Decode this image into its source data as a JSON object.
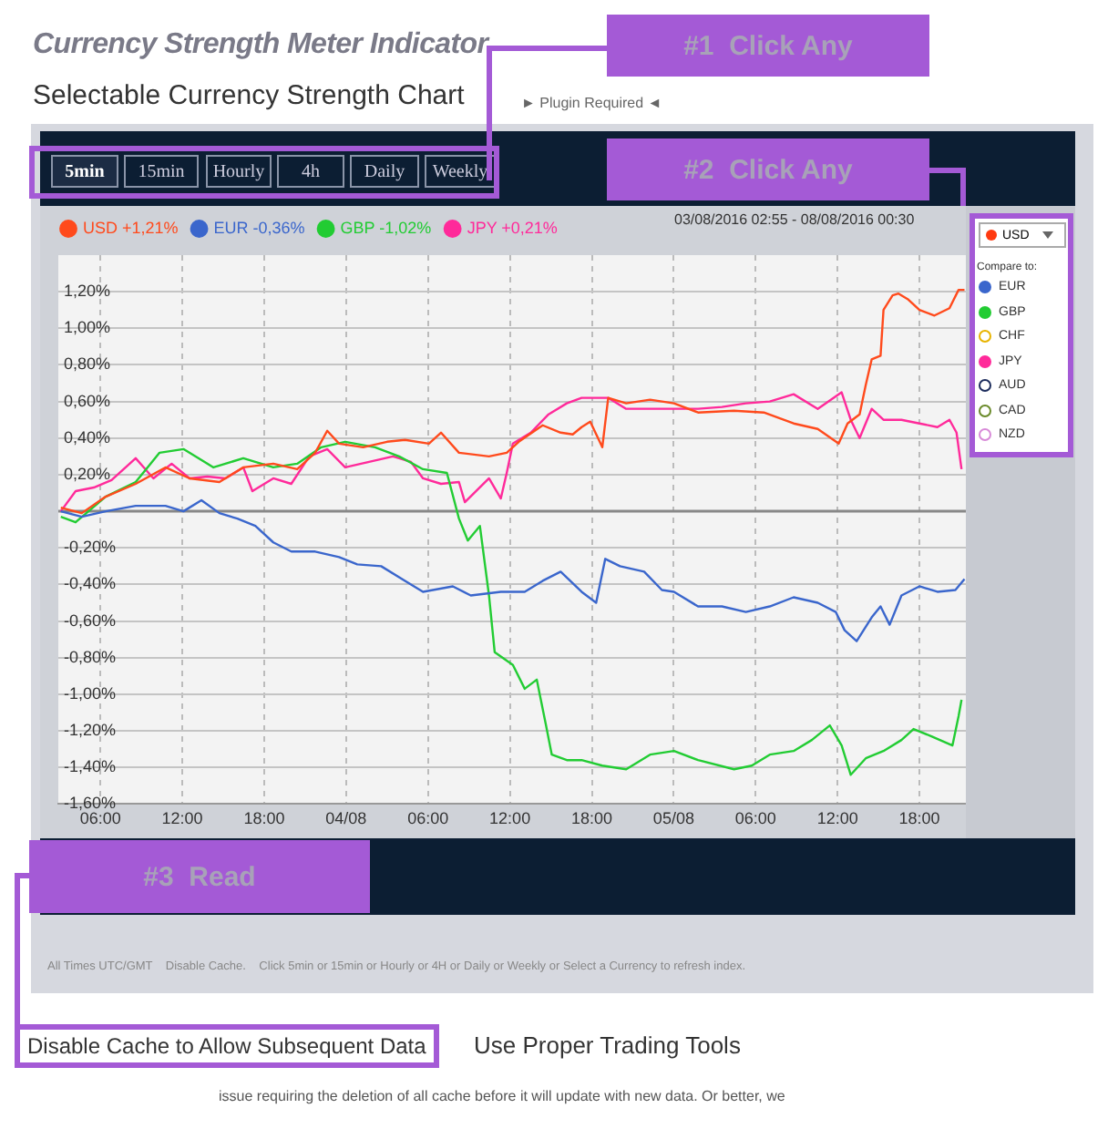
{
  "chart_data": {
    "type": "line",
    "title": "Currency Strength Meter Indicator",
    "subtitle": "Selectable Currency Strength Chart",
    "xlim": [
      "2016-08-03T02:55",
      "2016-08-05T21:24"
    ],
    "xticks": [
      {
        "value": "2016-08-03T06:00",
        "label": "06:00"
      },
      {
        "value": "2016-08-03T12:00",
        "label": "12:00"
      },
      {
        "value": "2016-08-03T18:00",
        "label": "18:00"
      },
      {
        "value": "2016-08-04T00:00",
        "label": "04/08"
      },
      {
        "value": "2016-08-04T06:00",
        "label": "06:00"
      },
      {
        "value": "2016-08-04T12:00",
        "label": "12:00"
      },
      {
        "value": "2016-08-04T18:00",
        "label": "18:00"
      },
      {
        "value": "2016-08-05T00:00",
        "label": "05/08"
      },
      {
        "value": "2016-08-05T06:00",
        "label": "06:00"
      },
      {
        "value": "2016-08-05T12:00",
        "label": "12:00"
      },
      {
        "value": "2016-08-05T18:00",
        "label": "18:00"
      }
    ],
    "ylim": [
      -1.6,
      1.4
    ],
    "yticks": [
      {
        "value": -1.6,
        "label": "-1,60%"
      },
      {
        "value": -1.4,
        "label": "-1,40%"
      },
      {
        "value": -1.2,
        "label": "-1,20%"
      },
      {
        "value": -1,
        "label": "-1,00%"
      },
      {
        "value": -0.8,
        "label": "-0,80%"
      },
      {
        "value": -0.6,
        "label": "-0,60%"
      },
      {
        "value": -0.4,
        "label": "-0,40%"
      },
      {
        "value": -0.2,
        "label": "-0,20%"
      },
      {
        "value": 0,
        "label": null
      },
      {
        "value": 0.2,
        "label": "0,20%"
      },
      {
        "value": 0.4,
        "label": "0,40%"
      },
      {
        "value": 0.6,
        "label": "0,60%"
      },
      {
        "value": 0.8,
        "label": "0,80%"
      },
      {
        "value": 1,
        "label": "1,00%"
      },
      {
        "value": 1.2,
        "label": "1,20%"
      }
    ],
    "grid": true,
    "legend": "top left",
    "marker": "none",
    "line_style": "solid",
    "ref_lines": [
      {
        "axis": "y",
        "value": 0,
        "color": "#888888"
      }
    ],
    "series": [
      {
        "name": "USD +1,21%",
        "color": "#ff4a1c",
        "x": [
          "2016-08-03T03:06",
          "2016-08-03T04:38",
          "2016-08-03T06:23",
          "2016-08-03T08:35",
          "2016-08-03T10:46",
          "2016-08-03T12:32",
          "2016-08-03T14:43",
          "2016-08-03T16:28",
          "2016-08-03T18:40",
          "2016-08-03T20:25",
          "2016-08-03T21:44",
          "2016-08-03T22:37",
          "2016-08-03T23:29",
          "2016-08-04T01:15",
          "2016-08-04T03:00",
          "2016-08-04T04:19",
          "2016-08-04T06:04",
          "2016-08-04T06:57",
          "2016-08-04T08:16",
          "2016-08-04T10:28",
          "2016-08-04T11:46",
          "2016-08-04T12:39",
          "2016-08-04T14:24",
          "2016-08-04T15:43",
          "2016-08-04T16:36",
          "2016-08-04T17:15",
          "2016-08-04T17:53",
          "2016-08-04T18:46",
          "2016-08-04T19:12",
          "2016-08-04T20:31",
          "2016-08-04T22:16",
          "2016-08-05T00:01",
          "2016-08-05T01:47",
          "2016-08-05T04:25",
          "2016-08-05T06:36",
          "2016-08-05T08:47",
          "2016-08-05T10:33",
          "2016-08-05T12:05",
          "2016-08-05T12:44",
          "2016-08-05T13:37",
          "2016-08-05T14:04",
          "2016-08-05T14:30",
          "2016-08-05T15:09",
          "2016-08-05T15:22",
          "2016-08-05T16:02",
          "2016-08-05T16:28",
          "2016-08-05T17:08",
          "2016-08-05T18:00",
          "2016-08-05T19:06",
          "2016-08-05T20:12",
          "2016-08-05T20:52",
          "2016-08-05T21:18"
        ],
        "values": [
          0.02,
          -0.01,
          0.08,
          0.15,
          0.24,
          0.18,
          0.16,
          0.24,
          0.26,
          0.23,
          0.32,
          0.44,
          0.37,
          0.35,
          0.38,
          0.39,
          0.37,
          0.43,
          0.32,
          0.3,
          0.32,
          0.38,
          0.47,
          0.43,
          0.42,
          0.46,
          0.49,
          0.35,
          0.62,
          0.59,
          0.61,
          0.59,
          0.54,
          0.55,
          0.54,
          0.48,
          0.45,
          0.37,
          0.48,
          0.53,
          0.69,
          0.83,
          0.85,
          1.1,
          1.18,
          1.19,
          1.16,
          1.1,
          1.07,
          1.11,
          1.21,
          1.21
        ]
      },
      {
        "name": "EUR -0,36%",
        "color": "#3a66cc",
        "x": [
          "2016-08-03T03:06",
          "2016-08-03T04:38",
          "2016-08-03T06:23",
          "2016-08-03T08:35",
          "2016-08-03T10:46",
          "2016-08-03T12:05",
          "2016-08-03T13:24",
          "2016-08-03T14:43",
          "2016-08-03T16:02",
          "2016-08-03T17:21",
          "2016-08-03T18:40",
          "2016-08-03T19:59",
          "2016-08-03T21:44",
          "2016-08-03T23:29",
          "2016-08-04T00:49",
          "2016-08-04T02:34",
          "2016-08-04T04:19",
          "2016-08-04T05:38",
          "2016-08-04T07:49",
          "2016-08-04T09:08",
          "2016-08-04T11:20",
          "2016-08-04T13:05",
          "2016-08-04T14:24",
          "2016-08-04T15:43",
          "2016-08-04T17:15",
          "2016-08-04T18:19",
          "2016-08-04T18:59",
          "2016-08-04T20:04",
          "2016-08-04T21:50",
          "2016-08-04T23:08",
          "2016-08-05T00:01",
          "2016-08-05T01:47",
          "2016-08-05T03:32",
          "2016-08-05T05:17",
          "2016-08-05T07:02",
          "2016-08-05T08:47",
          "2016-08-05T10:33",
          "2016-08-05T11:52",
          "2016-08-05T12:31",
          "2016-08-05T13:24",
          "2016-08-05T14:30",
          "2016-08-05T15:09",
          "2016-08-05T15:49",
          "2016-08-05T16:41",
          "2016-08-05T18:00",
          "2016-08-05T19:19",
          "2016-08-05T20:38",
          "2016-08-05T21:18"
        ],
        "values": [
          0,
          -0.03,
          0,
          0.03,
          0.03,
          0,
          0.06,
          -0.01,
          -0.04,
          -0.08,
          -0.17,
          -0.22,
          -0.22,
          -0.25,
          -0.29,
          -0.3,
          -0.38,
          -0.44,
          -0.41,
          -0.46,
          -0.44,
          -0.44,
          -0.38,
          -0.33,
          -0.44,
          -0.5,
          -0.26,
          -0.3,
          -0.33,
          -0.43,
          -0.44,
          -0.52,
          -0.52,
          -0.55,
          -0.52,
          -0.47,
          -0.5,
          -0.55,
          -0.65,
          -0.71,
          -0.58,
          -0.52,
          -0.62,
          -0.46,
          -0.41,
          -0.44,
          -0.43,
          -0.37
        ]
      },
      {
        "name": "GBP -1,02%",
        "color": "#22cc33",
        "x": [
          "2016-08-03T03:06",
          "2016-08-03T04:11",
          "2016-08-03T06:23",
          "2016-08-03T08:35",
          "2016-08-03T10:20",
          "2016-08-03T12:05",
          "2016-08-03T14:17",
          "2016-08-03T16:28",
          "2016-08-03T18:40",
          "2016-08-03T20:25",
          "2016-08-03T22:11",
          "2016-08-03T23:56",
          "2016-08-04T02:07",
          "2016-08-04T03:53",
          "2016-08-04T05:38",
          "2016-08-04T07:23",
          "2016-08-04T08:16",
          "2016-08-04T08:55",
          "2016-08-04T09:48",
          "2016-08-04T10:28",
          "2016-08-04T10:53",
          "2016-08-04T12:13",
          "2016-08-04T13:05",
          "2016-08-04T13:58",
          "2016-08-04T14:37",
          "2016-08-04T15:04",
          "2016-08-04T16:10",
          "2016-08-04T17:15",
          "2016-08-04T18:46",
          "2016-08-04T20:31",
          "2016-08-04T22:16",
          "2016-08-05T00:01",
          "2016-08-05T01:47",
          "2016-08-05T04:25",
          "2016-08-05T05:43",
          "2016-08-05T07:02",
          "2016-08-05T08:47",
          "2016-08-05T10:07",
          "2016-08-05T11:26",
          "2016-08-05T12:18",
          "2016-08-05T12:58",
          "2016-08-05T14:04",
          "2016-08-05T15:22",
          "2016-08-05T16:41",
          "2016-08-05T17:34",
          "2016-08-05T18:53",
          "2016-08-05T20:25",
          "2016-08-05T20:52",
          "2016-08-05T21:05"
        ],
        "values": [
          -0.03,
          -0.06,
          0.08,
          0.16,
          0.32,
          0.34,
          0.24,
          0.29,
          0.24,
          0.26,
          0.35,
          0.38,
          0.35,
          0.3,
          0.23,
          0.21,
          -0.04,
          -0.16,
          -0.08,
          -0.46,
          -0.77,
          -0.84,
          -0.97,
          -0.92,
          -1.16,
          -1.33,
          -1.36,
          -1.36,
          -1.39,
          -1.41,
          -1.33,
          -1.31,
          -1.36,
          -1.41,
          -1.39,
          -1.33,
          -1.31,
          -1.25,
          -1.17,
          -1.28,
          -1.44,
          -1.35,
          -1.31,
          -1.25,
          -1.19,
          -1.23,
          -1.28,
          -1.12,
          -1.03
        ]
      },
      {
        "name": "JPY +0,21%",
        "color": "#ff2a9a",
        "x": [
          "2016-08-03T03:06",
          "2016-08-03T04:11",
          "2016-08-03T05:31",
          "2016-08-03T06:49",
          "2016-08-03T08:35",
          "2016-08-03T09:53",
          "2016-08-03T11:13",
          "2016-08-03T12:32",
          "2016-08-03T13:50",
          "2016-08-03T15:10",
          "2016-08-03T16:28",
          "2016-08-03T17:08",
          "2016-08-03T18:40",
          "2016-08-03T19:59",
          "2016-08-03T21:18",
          "2016-08-03T22:37",
          "2016-08-03T23:56",
          "2016-08-04T01:41",
          "2016-08-04T03:26",
          "2016-08-04T04:45",
          "2016-08-04T05:38",
          "2016-08-04T06:57",
          "2016-08-04T08:16",
          "2016-08-04T08:42",
          "2016-08-04T10:28",
          "2016-08-04T11:20",
          "2016-08-04T11:46",
          "2016-08-04T12:13",
          "2016-08-04T13:32",
          "2016-08-04T14:50",
          "2016-08-04T16:10",
          "2016-08-04T17:15",
          "2016-08-04T17:53",
          "2016-08-04T19:12",
          "2016-08-04T20:31",
          "2016-08-04T22:16",
          "2016-08-05T00:01",
          "2016-08-05T01:47",
          "2016-08-05T03:32",
          "2016-08-05T05:17",
          "2016-08-05T07:02",
          "2016-08-05T08:47",
          "2016-08-05T10:33",
          "2016-08-05T12:18",
          "2016-08-05T12:58",
          "2016-08-05T13:37",
          "2016-08-05T14:30",
          "2016-08-05T15:22",
          "2016-08-05T16:41",
          "2016-08-05T18:00",
          "2016-08-05T19:19",
          "2016-08-05T20:12",
          "2016-08-05T20:43",
          "2016-08-05T21:05"
        ],
        "values": [
          0,
          0.11,
          0.13,
          0.17,
          0.29,
          0.18,
          0.26,
          0.18,
          0.19,
          0.18,
          0.24,
          0.11,
          0.18,
          0.15,
          0.3,
          0.34,
          0.24,
          0.27,
          0.3,
          0.27,
          0.18,
          0.15,
          0.16,
          0.05,
          0.18,
          0.07,
          0.21,
          0.37,
          0.43,
          0.53,
          0.59,
          0.62,
          0.62,
          0.62,
          0.56,
          0.56,
          0.56,
          0.56,
          0.57,
          0.59,
          0.6,
          0.64,
          0.56,
          0.65,
          0.5,
          0.4,
          0.56,
          0.5,
          0.5,
          0.48,
          0.46,
          0.5,
          0.43,
          0.23
        ]
      }
    ],
    "annotations": [
      "#1  Click Any",
      "#2  Click Any",
      "#3  Read",
      "► Plugin Required ◄",
      "5min",
      "15min",
      "Hourly",
      "4h",
      "Daily",
      "Weekly",
      "03/08/2016 02:55 - 08/08/2016 00:30",
      "USD",
      "Compare to:",
      "EUR",
      "GBP",
      "CHF",
      "JPY",
      "AUD",
      "CAD",
      "NZD",
      "All Times UTC/GMT    Disable Cache.    Click 5min or 15min or Hourly or 4H or Daily or Weekly or Select a Currency to refresh index.",
      "Disable Cache to Allow Subsequent Data",
      "Use Proper Trading Tools",
      "issue requiring the deletion of all cache before it will update with new data. Or better, we"
    ]
  }
}
